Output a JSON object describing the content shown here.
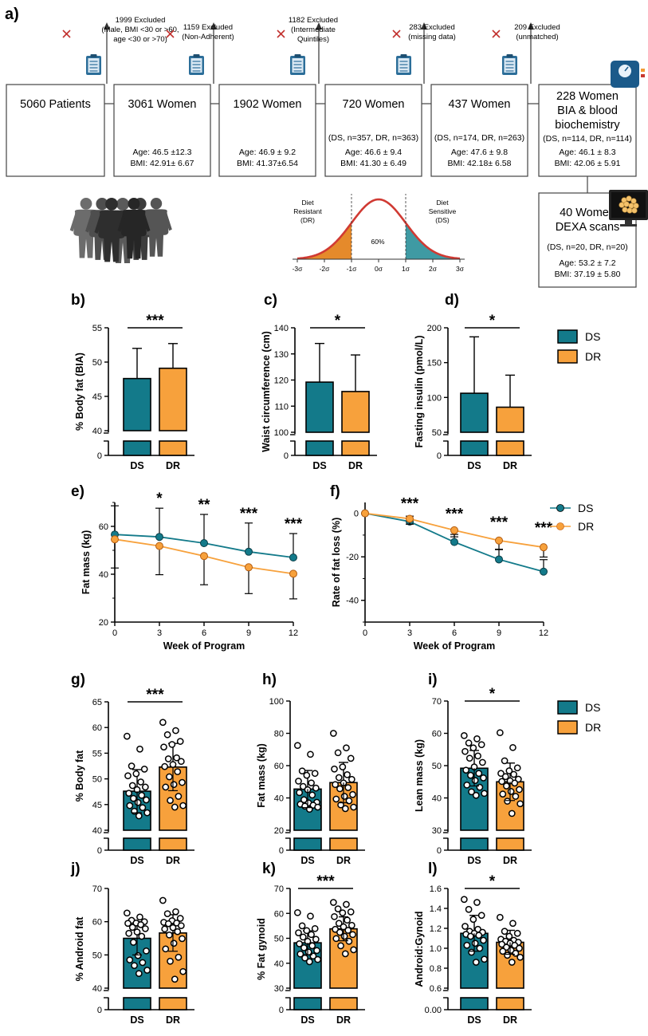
{
  "flowchart": {
    "panel_label": "a)",
    "boxes": [
      {
        "title": "5060 Patients",
        "sub": "",
        "age": "",
        "bmi": ""
      },
      {
        "title": "3061 Women",
        "sub": "",
        "age": "Age: 46.5 ±12.3",
        "bmi": "BMI: 42.91± 6.67"
      },
      {
        "title": "1902 Women",
        "sub": "",
        "age": "Age: 46.9 ± 9.2",
        "bmi": "BMI: 41.37±6.54"
      },
      {
        "title": "720 Women",
        "sub": "(DS, n=357, DR, n=363)",
        "age": "Age: 46.6 ± 9.4",
        "bmi": "BMI: 41.30 ± 6.49"
      },
      {
        "title": "437 Women",
        "sub": "(DS, n=174, DR, n=263)",
        "age": "Age: 47.6 ± 9.8",
        "bmi": "BMI: 42.18± 6.58"
      },
      {
        "title": "228 Women",
        "title2": "BIA & blood",
        "title3": "biochemistry",
        "sub": "(DS, n=114, DR, n=114)",
        "age": "Age: 46.1 ± 8.3",
        "bmi": "BMI: 42.06 ± 5.91"
      }
    ],
    "dexa_box": {
      "title": "40 Women",
      "title2": "DEXA scans",
      "sub": "(DS, n=20, DR, n=20)",
      "age": "Age: 53.2 ± 7.2",
      "bmi": "BMI: 37.19 ± 5.80"
    },
    "exclusions": [
      {
        "count": "1999 Excluded",
        "lines": [
          "(Male,  BMI <30 or >60,",
          "age <30 or >70)"
        ]
      },
      {
        "count": "1159 Excluded",
        "lines": [
          "(Non-Adherent)"
        ]
      },
      {
        "count": "1182 Excluded",
        "lines": [
          "(Intermediate",
          "Quintiles)"
        ]
      },
      {
        "count": "283 Excluded",
        "lines": [
          "(missing data)"
        ]
      },
      {
        "count": "209 Excluded",
        "lines": [
          "(unmatched)"
        ]
      }
    ],
    "bell_curve": {
      "left_label": [
        "Diet",
        "Resistant",
        "(DR)"
      ],
      "right_label": [
        "Diet",
        "Sensitive",
        "(DS)"
      ],
      "center_label": "60%",
      "ticks": [
        "-3σ",
        "-2σ",
        "-1σ",
        "0σ",
        "1σ",
        "2σ",
        "3σ"
      ]
    },
    "icons": [
      "crowd-silhouette-icon",
      "clipboard-icon",
      "scale-icon",
      "monitor-cells-icon",
      "exclude-cross-icon"
    ]
  },
  "legend_top": {
    "items": [
      "DS",
      "DR"
    ]
  },
  "legend_mid": {
    "items": [
      "DS",
      "DR"
    ]
  },
  "legend_bot": {
    "items": [
      "DS",
      "DR"
    ]
  },
  "colors": {
    "DS": "#137a8a",
    "DR": "#f7a13c",
    "DR_dark": "#e6842c",
    "red_curve": "#d03a33",
    "flow_border": "#444444"
  },
  "chart_data": [
    {
      "panel": "b)",
      "type": "bar",
      "categories": [
        "DS",
        "DR"
      ],
      "values": [
        47.6,
        49.1
      ],
      "error": [
        4.4,
        3.6
      ],
      "ylabel": "% Body fat (BIA)",
      "ylim": [
        40,
        55
      ],
      "yticks": [
        40,
        45,
        50,
        55
      ],
      "ybreak_zero": true,
      "significance": "***"
    },
    {
      "panel": "c)",
      "type": "bar",
      "categories": [
        "DS",
        "DR"
      ],
      "values": [
        119.2,
        115.6
      ],
      "error": [
        14.8,
        14.0
      ],
      "ylabel": "Waist circumference (cm)",
      "ylim": [
        100,
        140
      ],
      "yticks": [
        100,
        110,
        120,
        130,
        140
      ],
      "ybreak_zero": true,
      "significance": "*"
    },
    {
      "panel": "d)",
      "type": "bar",
      "categories": [
        "DS",
        "DR"
      ],
      "values": [
        106,
        86
      ],
      "error": [
        81,
        46
      ],
      "ylabel": "Fasting insulin (pmol/L)",
      "ylim": [
        50,
        200
      ],
      "yticks": [
        50,
        100,
        150,
        200
      ],
      "ybreak_zero": true,
      "significance": "*"
    },
    {
      "panel": "e)",
      "type": "line",
      "x": [
        0,
        3,
        6,
        9,
        12
      ],
      "xlabel": "Week of Program",
      "ylabel": "Fat mass (kg)",
      "ylim": [
        20,
        70
      ],
      "yticks": [
        20,
        40,
        60
      ],
      "xticks": [
        0,
        3,
        6,
        9,
        12
      ],
      "series": [
        {
          "name": "DS",
          "values": [
            56.6,
            55.6,
            53.0,
            49.4,
            47.0
          ],
          "error": [
            12.0,
            12.0,
            12.0,
            12.0,
            10.0
          ]
        },
        {
          "name": "DR",
          "values": [
            54.6,
            51.8,
            47.6,
            42.9,
            40.2
          ],
          "error": [
            12.0,
            12.0,
            12.0,
            11.0,
            10.5
          ]
        }
      ],
      "significance": [
        {
          "x": 3,
          "label": "*"
        },
        {
          "x": 6,
          "label": "**"
        },
        {
          "x": 9,
          "label": "***"
        },
        {
          "x": 12,
          "label": "***"
        }
      ]
    },
    {
      "panel": "f)",
      "type": "line",
      "x": [
        0,
        3,
        6,
        9,
        12
      ],
      "xlabel": "Week of Program",
      "ylabel": "Rate of fat loss (%)",
      "ylim": [
        -50,
        5
      ],
      "yticks": [
        -40,
        -20,
        0
      ],
      "xticks": [
        0,
        3,
        6,
        9,
        12
      ],
      "series": [
        {
          "name": "DS",
          "values": [
            0,
            -3.8,
            -13.2,
            -21.2,
            -26.8
          ],
          "error": [
            0,
            2.5,
            3.5,
            4.5,
            5.5
          ]
        },
        {
          "name": "DR",
          "values": [
            0,
            -2.5,
            -7.8,
            -12.5,
            -15.6
          ],
          "error": [
            0,
            2.5,
            3.0,
            4.0,
            4.5
          ]
        }
      ],
      "significance": [
        {
          "x": 3,
          "label": "***"
        },
        {
          "x": 6,
          "label": "***"
        },
        {
          "x": 9,
          "label": "***"
        },
        {
          "x": 12,
          "label": "***"
        }
      ]
    },
    {
      "panel": "g)",
      "type": "bar",
      "categories": [
        "DS",
        "DR"
      ],
      "values": [
        47.6,
        52.3
      ],
      "error": [
        4.2,
        4.6
      ],
      "ylabel": "% Body fat",
      "ylim": [
        40,
        65
      ],
      "yticks": [
        40,
        45,
        50,
        55,
        60,
        65
      ],
      "ybreak_zero": true,
      "significance": "***",
      "points": [
        [
          58.3,
          55.8,
          52.5,
          51.9,
          51.0,
          50.6,
          49.4,
          48.7,
          48.4,
          47.9,
          47.2,
          46.8,
          46.2,
          45.9,
          45.4,
          44.8,
          44.4,
          43.7,
          43.4,
          42.8
        ],
        [
          61.0,
          59.4,
          58.6,
          57.3,
          56.7,
          56.2,
          54.1,
          53.9,
          53.4,
          52.8,
          52.4,
          51.4,
          50.4,
          49.3,
          48.9,
          48.4,
          46.6,
          45.8,
          44.8,
          44.5
        ]
      ]
    },
    {
      "panel": "h)",
      "type": "bar",
      "categories": [
        "DS",
        "DR"
      ],
      "values": [
        45.5,
        49.5
      ],
      "error": [
        11.5,
        12.5
      ],
      "ylabel": "Fat mass (kg)",
      "ylim": [
        20,
        100
      ],
      "yticks": [
        20,
        40,
        60,
        80,
        100
      ],
      "ybreak_zero": true,
      "significance": "",
      "points": [
        [
          72.5,
          67.0,
          56.7,
          55.2,
          54.0,
          50.4,
          49.3,
          47.1,
          46.1,
          45.1,
          43.3,
          41.8,
          38.9,
          37.3,
          36.9,
          36.1,
          35.5,
          34.9,
          34.3,
          33.0
        ],
        [
          80.0,
          71.0,
          68.0,
          64.5,
          59.2,
          57.9,
          54.4,
          52.6,
          51.5,
          49.3,
          48.3,
          46.4,
          45.7,
          42.1,
          41.0,
          39.3,
          38.2,
          35.7,
          34.3,
          33.4
        ]
      ]
    },
    {
      "panel": "i)",
      "type": "bar",
      "categories": [
        "DS",
        "DR"
      ],
      "values": [
        49.2,
        45.0
      ],
      "error": [
        5.5,
        5.8
      ],
      "ylabel": "Lean mass (kg)",
      "ylim": [
        30,
        70
      ],
      "yticks": [
        30,
        40,
        50,
        60,
        70
      ],
      "ybreak_zero": true,
      "significance": "*",
      "points": [
        [
          59.3,
          58.3,
          57.0,
          56.5,
          55.5,
          54.4,
          53.0,
          52.3,
          51.0,
          49.6,
          48.6,
          47.6,
          47.0,
          46.2,
          45.4,
          44.0,
          43.3,
          41.9,
          41.4,
          40.8
        ],
        [
          60.2,
          55.6,
          51.5,
          49.3,
          48.4,
          47.6,
          47.3,
          46.6,
          45.8,
          45.3,
          45.1,
          44.6,
          43.7,
          42.6,
          42.0,
          41.2,
          40.5,
          39.0,
          38.2,
          35.2
        ]
      ]
    },
    {
      "panel": "j)",
      "type": "bar",
      "categories": [
        "DS",
        "DR"
      ],
      "values": [
        55.0,
        56.6
      ],
      "error": [
        5.0,
        5.5
      ],
      "ylabel": "% Android fat",
      "ylim": [
        40,
        70
      ],
      "yticks": [
        40,
        50,
        60,
        70
      ],
      "ybreak_zero": true,
      "significance": "",
      "points": [
        [
          62.6,
          61.4,
          60.4,
          60.0,
          59.6,
          59.5,
          59.1,
          58.3,
          57.9,
          56.9,
          56.5,
          55.6,
          53.8,
          51.2,
          49.8,
          48.5,
          47.7,
          46.8,
          45.4,
          44.4
        ],
        [
          66.4,
          63.0,
          62.4,
          61.0,
          60.3,
          59.8,
          59.6,
          59.4,
          58.8,
          58.2,
          57.8,
          57.0,
          56.0,
          54.9,
          53.5,
          51.8,
          49.3,
          48.1,
          45.0,
          42.7
        ]
      ]
    },
    {
      "panel": "k)",
      "type": "bar",
      "categories": [
        "DS",
        "DR"
      ],
      "values": [
        48.2,
        53.8
      ],
      "error": [
        4.8,
        4.8
      ],
      "ylabel": "% Fat gynoid",
      "ylim": [
        30,
        70
      ],
      "yticks": [
        30,
        40,
        50,
        60,
        70
      ],
      "ybreak_zero": true,
      "significance": "***",
      "points": [
        [
          60.3,
          58.9,
          55.0,
          53.9,
          53.1,
          52.2,
          51.5,
          50.5,
          49.6,
          48.8,
          47.8,
          47.0,
          46.2,
          45.1,
          44.5,
          43.7,
          42.9,
          42.1,
          41.5,
          40.6
        ],
        [
          64.4,
          63.6,
          61.8,
          60.6,
          60.2,
          58.7,
          57.3,
          56.0,
          55.2,
          54.6,
          53.6,
          53.2,
          52.4,
          51.5,
          50.8,
          49.9,
          48.8,
          47.0,
          45.4,
          43.8
        ]
      ]
    },
    {
      "panel": "l)",
      "type": "bar",
      "categories": [
        "DS",
        "DR"
      ],
      "values": [
        1.15,
        1.06
      ],
      "error": [
        0.18,
        0.12
      ],
      "ylabel": "Android:Gynoid",
      "ylim": [
        0.6,
        1.6
      ],
      "yticks": [
        0.6,
        0.8,
        1.0,
        1.2,
        1.4,
        1.6
      ],
      "yticklabels": [
        "0.6",
        "0.8",
        "1.0",
        "1.2",
        "1.4",
        "1.6"
      ],
      "zerolabel": "0.00",
      "ybreak_zero": true,
      "significance": "*",
      "points": [
        [
          1.49,
          1.46,
          1.39,
          1.33,
          1.29,
          1.22,
          1.19,
          1.17,
          1.16,
          1.15,
          1.14,
          1.13,
          1.12,
          1.08,
          1.05,
          1.03,
          1.0,
          0.96,
          0.89,
          0.86
        ],
        [
          1.31,
          1.25,
          1.17,
          1.15,
          1.12,
          1.09,
          1.08,
          1.07,
          1.06,
          1.05,
          1.04,
          1.03,
          1.01,
          1.0,
          0.98,
          0.97,
          0.95,
          0.93,
          0.91,
          0.86
        ]
      ]
    }
  ]
}
